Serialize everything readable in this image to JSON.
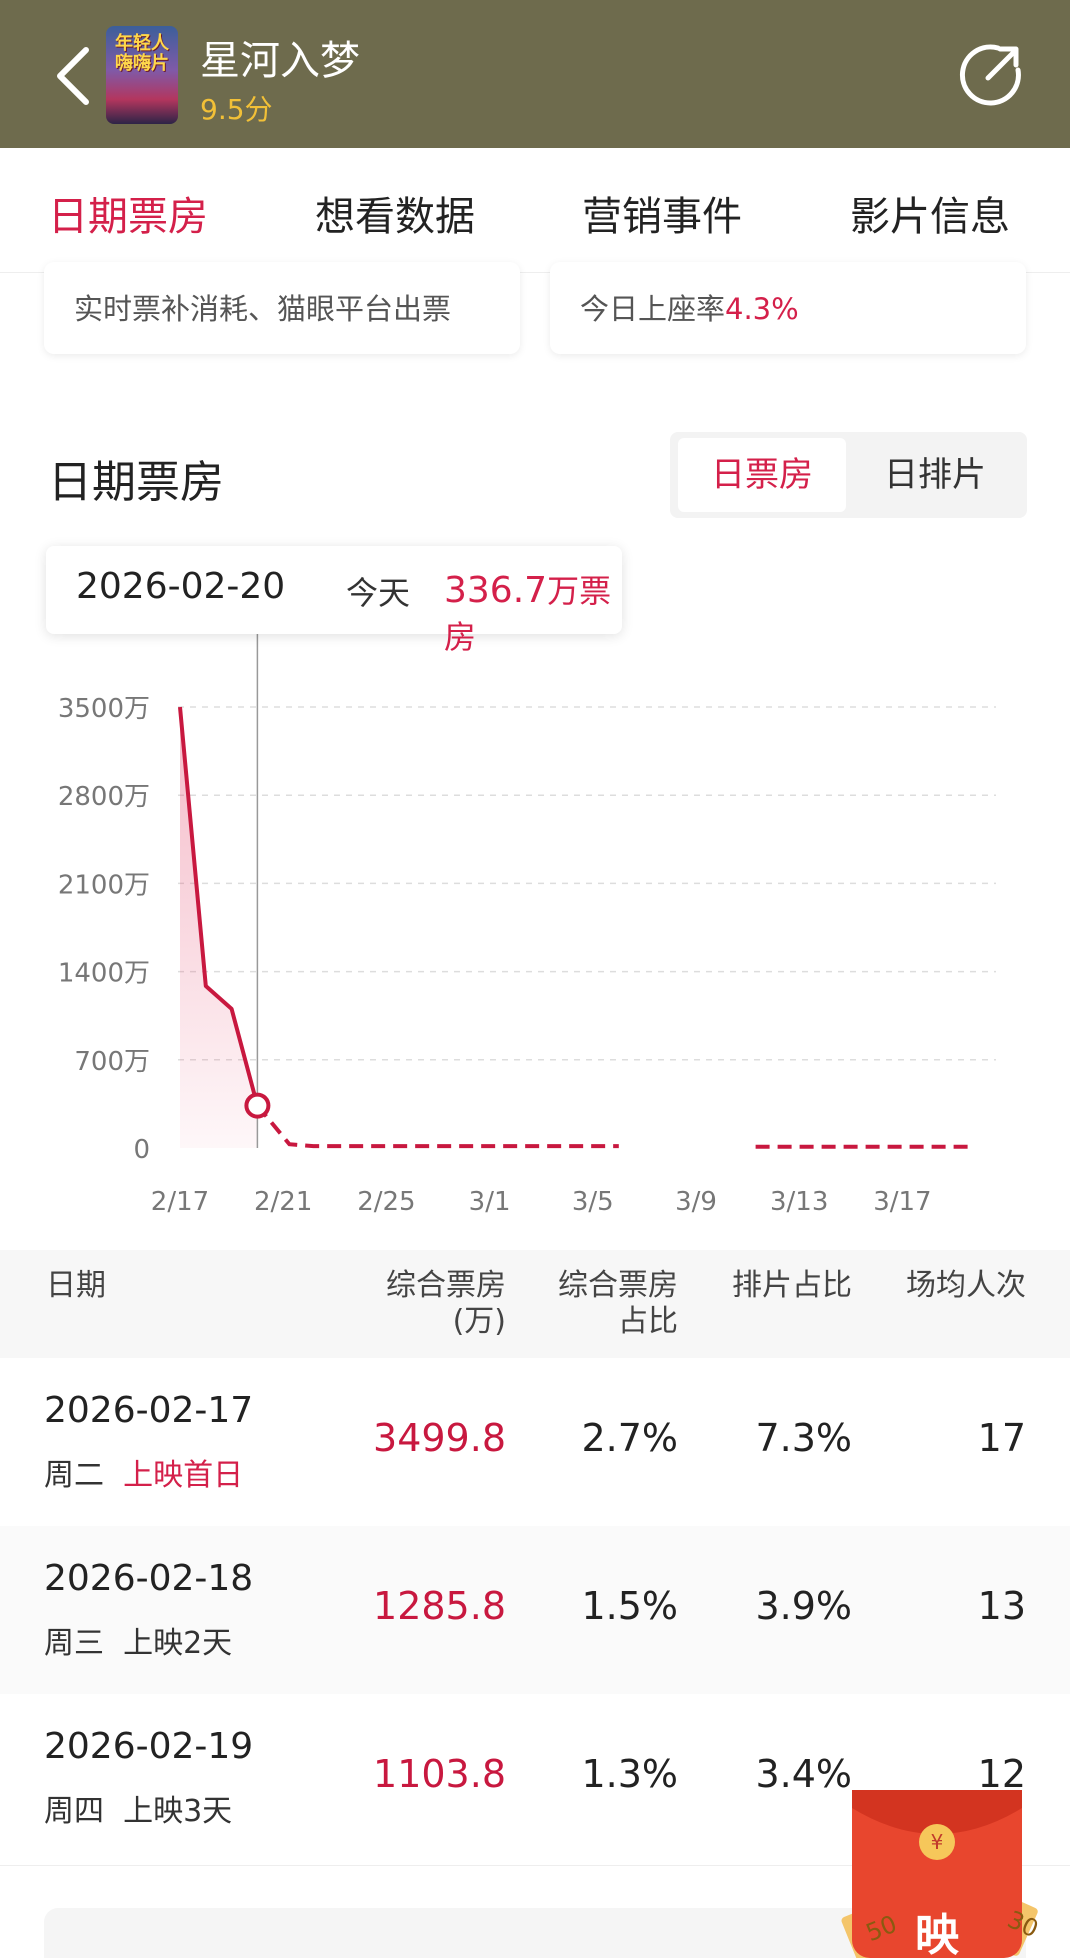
{
  "header": {
    "title": "星河入梦",
    "score": "9.5分",
    "poster_text": "年轻人嗨嗨片"
  },
  "tabs": [
    {
      "label": "日期票房",
      "active": true
    },
    {
      "label": "想看数据",
      "active": false
    },
    {
      "label": "营销事件",
      "active": false
    },
    {
      "label": "影片信息",
      "active": false
    }
  ],
  "cards": {
    "left_text": "实时票补消耗、猫眼平台出票",
    "right_prefix": "今日上座率",
    "right_value": "4.3%"
  },
  "section": {
    "title": "日期票房",
    "toggle_on": "日票房",
    "toggle_off": "日排片"
  },
  "tooltip": {
    "date": "2026-02-20",
    "today": "今天",
    "value": "336.7",
    "unit": "万票房"
  },
  "chart_data": {
    "type": "line",
    "y_ticks": [
      "0",
      "700万",
      "1400万",
      "2100万",
      "2800万",
      "3500万"
    ],
    "x_ticks": [
      "2/17",
      "2/21",
      "2/25",
      "3/1",
      "3/5",
      "3/9",
      "3/13",
      "3/17"
    ],
    "ylim": [
      0,
      3500
    ],
    "actual": {
      "x": [
        "2/17",
        "2/18",
        "2/19",
        "2/20"
      ],
      "values": [
        3499.8,
        1285.8,
        1103.8,
        336.7
      ]
    },
    "forecast_segments": [
      {
        "x_start": "2/20",
        "x_end": "3/5",
        "values_hint": [
          336.7,
          30,
          15
        ]
      },
      {
        "x_start": "3/11",
        "x_end": "3/20",
        "values_hint": [
          10,
          10
        ]
      }
    ],
    "highlight_x": "2/20",
    "colors": {
      "line": "#c8183f",
      "grid": "#dddddd"
    }
  },
  "table": {
    "headers": {
      "date": "日期",
      "bo_line1": "综合票房",
      "bo_line2": "(万)",
      "share_line1": "综合票房",
      "share_line2": "占比",
      "sched": "排片占比",
      "avg": "场均人次"
    },
    "rows": [
      {
        "date": "2026-02-17",
        "weekday": "周二",
        "tag": "上映首日",
        "tag_red": true,
        "bo": "3499.8",
        "share": "2.7%",
        "sched": "7.3%",
        "avg": "17"
      },
      {
        "date": "2026-02-18",
        "weekday": "周三",
        "tag": "上映2天",
        "tag_red": false,
        "bo": "1285.8",
        "share": "1.5%",
        "sched": "3.9%",
        "avg": "13"
      },
      {
        "date": "2026-02-19",
        "weekday": "周四",
        "tag": "上映3天",
        "tag_red": false,
        "bo": "1103.8",
        "share": "1.3%",
        "sched": "3.4%",
        "avg": "12"
      }
    ]
  },
  "packet": {
    "label": "映",
    "coupon1": "50",
    "coupon2": "30"
  }
}
